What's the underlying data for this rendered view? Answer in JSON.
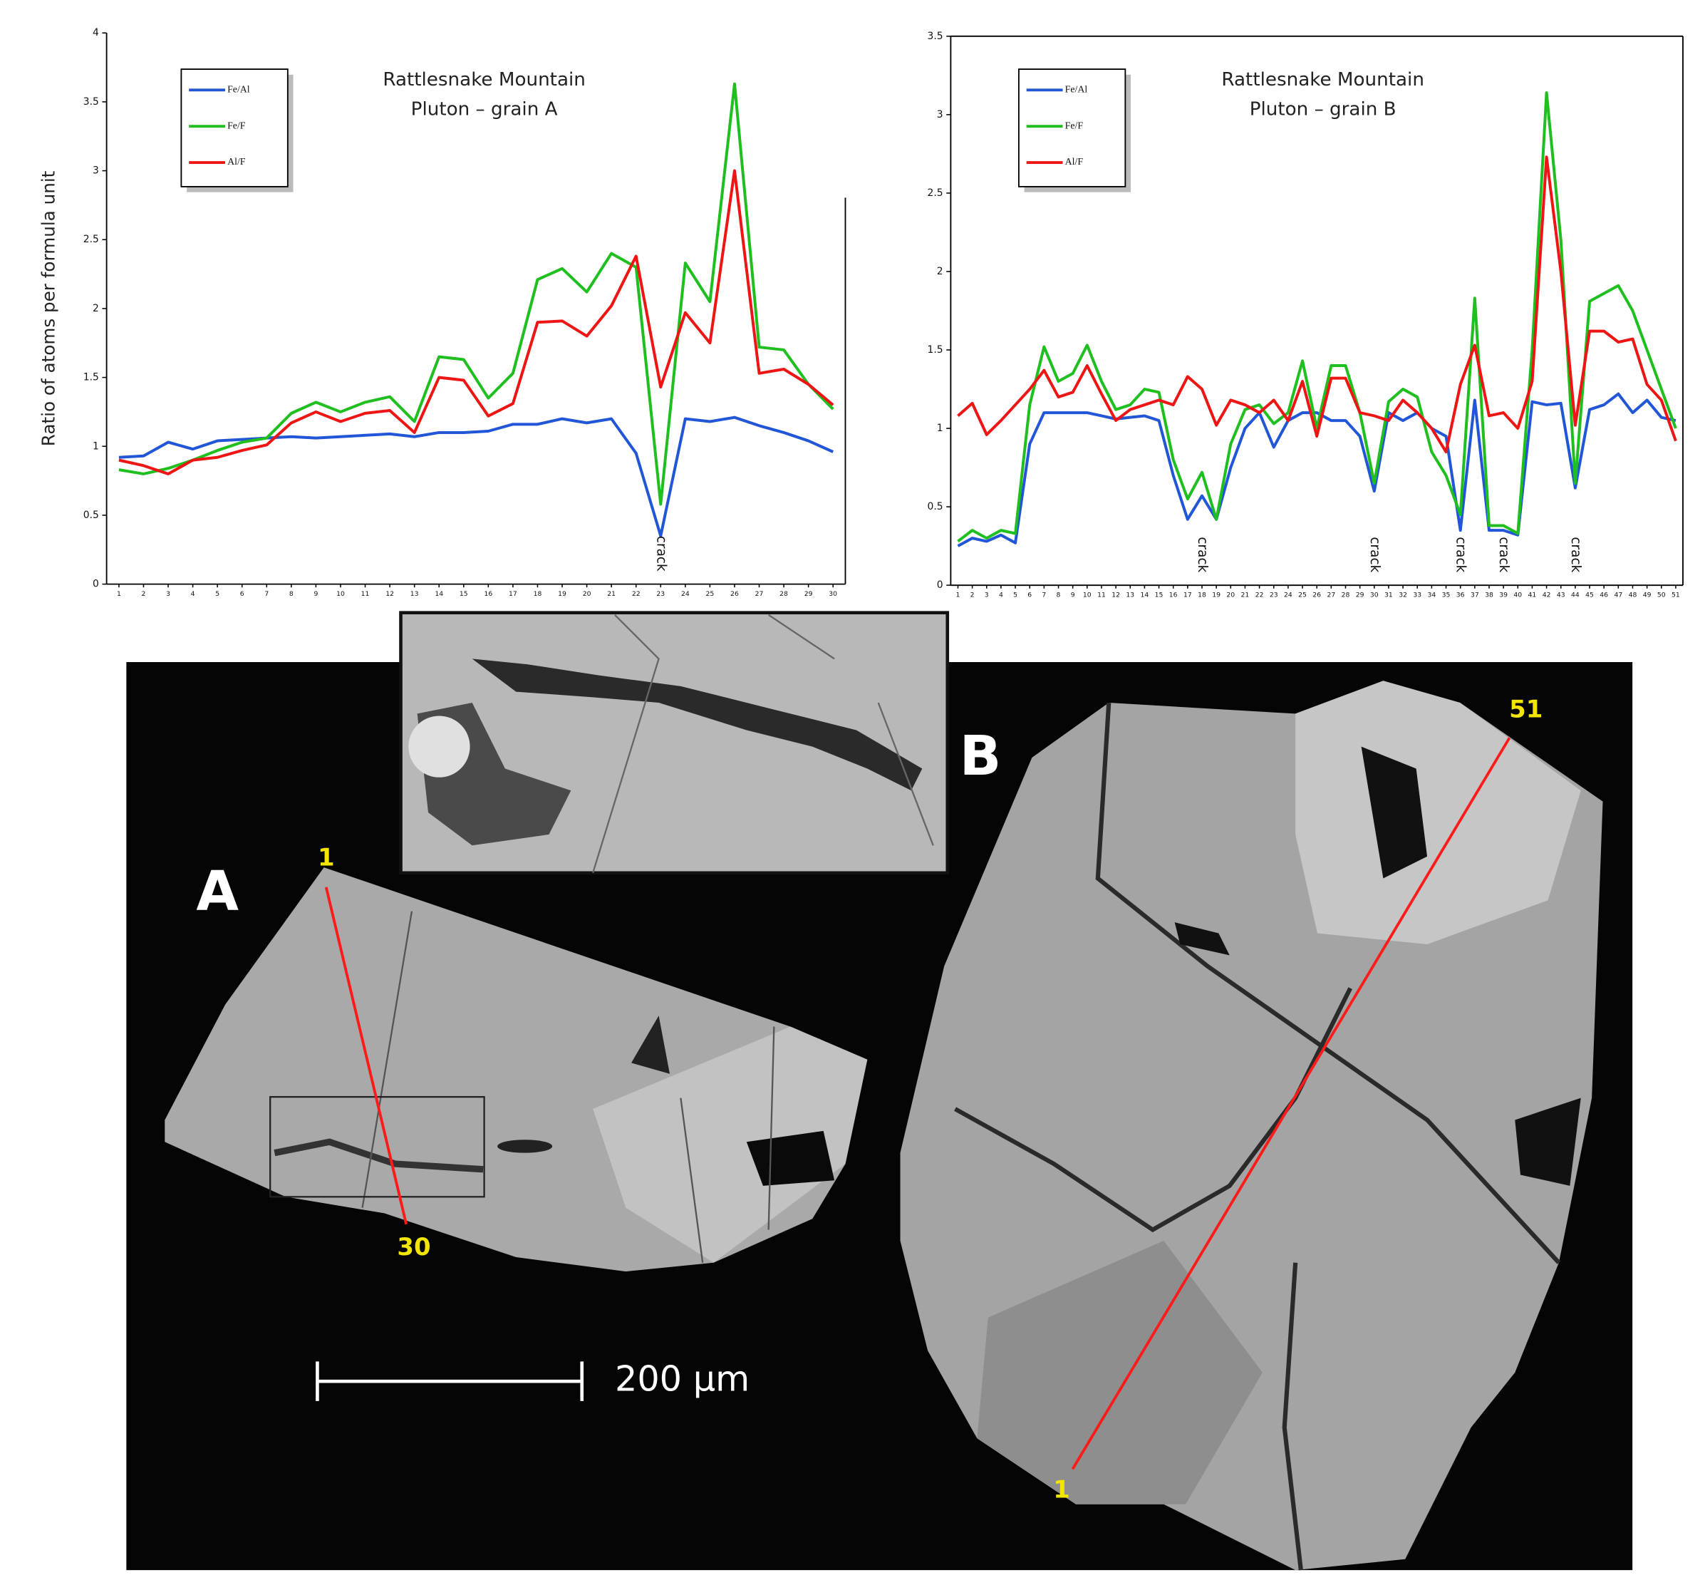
{
  "chart_data": [
    {
      "type": "line",
      "title": [
        "Rattlesnake Mountain",
        "Pluton – grain A"
      ],
      "y_label": "Ratio of atoms per formula unit",
      "categories": [
        "1",
        "2",
        "3",
        "4",
        "5",
        "6",
        "7",
        "8",
        "9",
        "10",
        "11",
        "12",
        "13",
        "14",
        "15",
        "16",
        "17",
        "18",
        "19",
        "20",
        "21",
        "22",
        "23",
        "24",
        "25",
        "26",
        "27",
        "28",
        "29",
        "30"
      ],
      "series": [
        {
          "name": "Fe/Al",
          "color": "#2156d6",
          "values": [
            0.92,
            0.93,
            1.03,
            0.98,
            1.04,
            1.05,
            1.06,
            1.07,
            1.06,
            1.07,
            1.08,
            1.09,
            1.07,
            1.1,
            1.1,
            1.11,
            1.16,
            1.16,
            1.2,
            1.17,
            1.2,
            0.95,
            0.35,
            1.2,
            1.18,
            1.21,
            1.15,
            1.1,
            1.04,
            0.96
          ]
        },
        {
          "name": "Fe/F",
          "color": "#1fbf1f",
          "values": [
            0.83,
            0.8,
            0.84,
            0.9,
            0.97,
            1.03,
            1.06,
            1.24,
            1.32,
            1.25,
            1.32,
            1.36,
            1.18,
            1.65,
            1.63,
            1.35,
            1.53,
            2.21,
            2.29,
            2.12,
            2.4,
            2.3,
            0.58,
            2.33,
            2.05,
            3.63,
            1.72,
            1.7,
            1.45,
            1.27
          ]
        },
        {
          "name": "Al/F",
          "color": "#ee1515",
          "values": [
            0.9,
            0.86,
            0.8,
            0.9,
            0.92,
            0.97,
            1.01,
            1.17,
            1.25,
            1.18,
            1.24,
            1.26,
            1.1,
            1.5,
            1.48,
            1.22,
            1.31,
            1.9,
            1.91,
            1.8,
            2.02,
            2.38,
            1.43,
            1.97,
            1.75,
            3.0,
            1.53,
            1.56,
            1.45,
            1.3
          ]
        }
      ],
      "ylim": [
        0,
        4
      ],
      "yticks": [
        0,
        0.5,
        1,
        1.5,
        2,
        2.5,
        3,
        3.5,
        4
      ],
      "legend": "upper left",
      "annotations": [
        {
          "text": "crack",
          "category": "23"
        }
      ]
    },
    {
      "type": "line",
      "title": [
        "Rattlesnake Mountain",
        "Pluton – grain B"
      ],
      "categories": [
        "1",
        "2",
        "3",
        "4",
        "5",
        "6",
        "7",
        "8",
        "9",
        "10",
        "11",
        "12",
        "13",
        "14",
        "15",
        "16",
        "17",
        "18",
        "19",
        "20",
        "21",
        "22",
        "23",
        "24",
        "25",
        "26",
        "27",
        "28",
        "29",
        "30",
        "31",
        "32",
        "33",
        "34",
        "35",
        "36",
        "37",
        "38",
        "39",
        "40",
        "41",
        "42",
        "43",
        "44",
        "45",
        "46",
        "47",
        "48",
        "49",
        "50",
        "51"
      ],
      "series": [
        {
          "name": "Fe/Al",
          "color": "#2156d6",
          "values": [
            0.25,
            0.3,
            0.28,
            0.32,
            0.27,
            0.9,
            1.1,
            1.1,
            1.1,
            1.1,
            1.08,
            1.06,
            1.07,
            1.08,
            1.05,
            0.7,
            0.42,
            0.57,
            0.42,
            0.75,
            1.0,
            1.1,
            0.88,
            1.05,
            1.1,
            1.1,
            1.05,
            1.05,
            0.95,
            0.6,
            1.1,
            1.05,
            1.1,
            1.0,
            0.95,
            0.35,
            1.18,
            0.35,
            0.35,
            0.32,
            1.17,
            1.15,
            1.16,
            0.62,
            1.12,
            1.15,
            1.22,
            1.1,
            1.18,
            1.07,
            1.05
          ]
        },
        {
          "name": "Fe/F",
          "color": "#1fbf1f",
          "values": [
            0.28,
            0.35,
            0.3,
            0.35,
            0.33,
            1.15,
            1.52,
            1.3,
            1.35,
            1.53,
            1.3,
            1.12,
            1.15,
            1.25,
            1.23,
            0.8,
            0.55,
            0.72,
            0.42,
            0.9,
            1.12,
            1.15,
            1.03,
            1.1,
            1.43,
            1.0,
            1.4,
            1.4,
            1.1,
            0.65,
            1.17,
            1.25,
            1.2,
            0.85,
            0.7,
            0.45,
            1.83,
            0.38,
            0.38,
            0.33,
            1.5,
            3.14,
            2.2,
            0.65,
            1.81,
            1.86,
            1.91,
            1.75,
            1.5,
            1.25,
            1.0
          ]
        },
        {
          "name": "Al/F",
          "color": "#ee1515",
          "values": [
            1.08,
            1.16,
            0.96,
            1.05,
            1.15,
            1.25,
            1.37,
            1.2,
            1.23,
            1.4,
            1.22,
            1.05,
            1.12,
            1.15,
            1.18,
            1.15,
            1.33,
            1.25,
            1.02,
            1.18,
            1.15,
            1.1,
            1.18,
            1.05,
            1.3,
            0.95,
            1.32,
            1.32,
            1.1,
            1.08,
            1.05,
            1.18,
            1.1,
            1.0,
            0.85,
            1.28,
            1.53,
            1.08,
            1.1,
            1.0,
            1.3,
            2.73,
            2.0,
            1.02,
            1.62,
            1.62,
            1.55,
            1.57,
            1.28,
            1.18,
            0.92
          ]
        }
      ],
      "ylim": [
        0,
        3.5
      ],
      "yticks": [
        0,
        0.5,
        1,
        1.5,
        2,
        2.5,
        3,
        3.5
      ],
      "legend": "upper left",
      "annotations": [
        {
          "text": "crack",
          "category": "18"
        },
        {
          "text": "crack",
          "category": "30"
        },
        {
          "text": "crack",
          "category": "36"
        },
        {
          "text": "crack",
          "category": "39"
        },
        {
          "text": "crack",
          "category": "44"
        }
      ]
    }
  ],
  "figure": {
    "grain_labels": [
      "A",
      "B"
    ],
    "traverse_labels": [
      "1",
      "30",
      "1",
      "51"
    ],
    "scale_bar": "200 µm"
  }
}
